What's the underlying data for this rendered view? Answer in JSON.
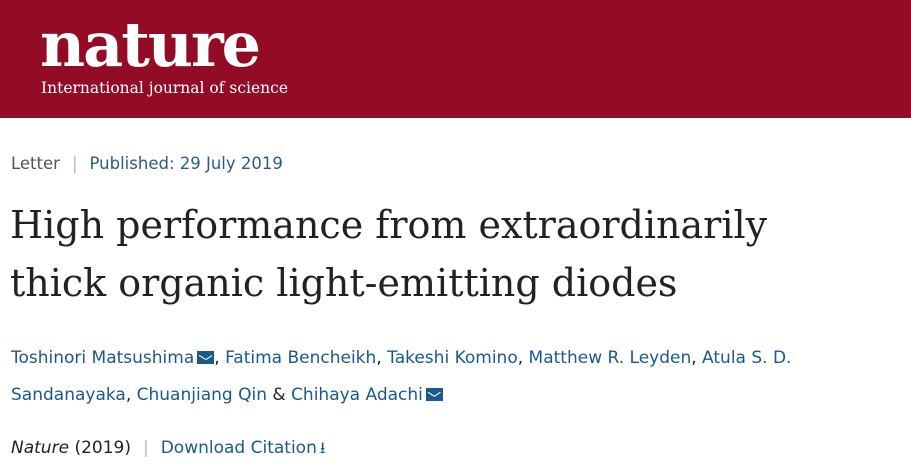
{
  "masthead": {
    "logo": "nature",
    "tagline": "International journal of science",
    "background_color": "#930c26"
  },
  "article": {
    "type": "Letter",
    "published": "Published: 29 July 2019",
    "title_line1": "High performance from extraordinarily",
    "title_line2": "thick organic light-emitting diodes",
    "authors": [
      "Toshinori Matsushima",
      "Fatima Bencheikh",
      "Takeshi Komino",
      "Matthew R. Leyden",
      "Atula S. D.",
      "Sandanayaka",
      "Chuanjiang Qin",
      "Chihaya Adachi"
    ],
    "author_separator": ", ",
    "ampersand": "&",
    "journal": "Nature",
    "year": "(2019)",
    "download_label": "Download Citation",
    "download_icon": "download-arrow-icon",
    "mail_icon": "mail-icon",
    "link_color": "#1a5a8a"
  }
}
